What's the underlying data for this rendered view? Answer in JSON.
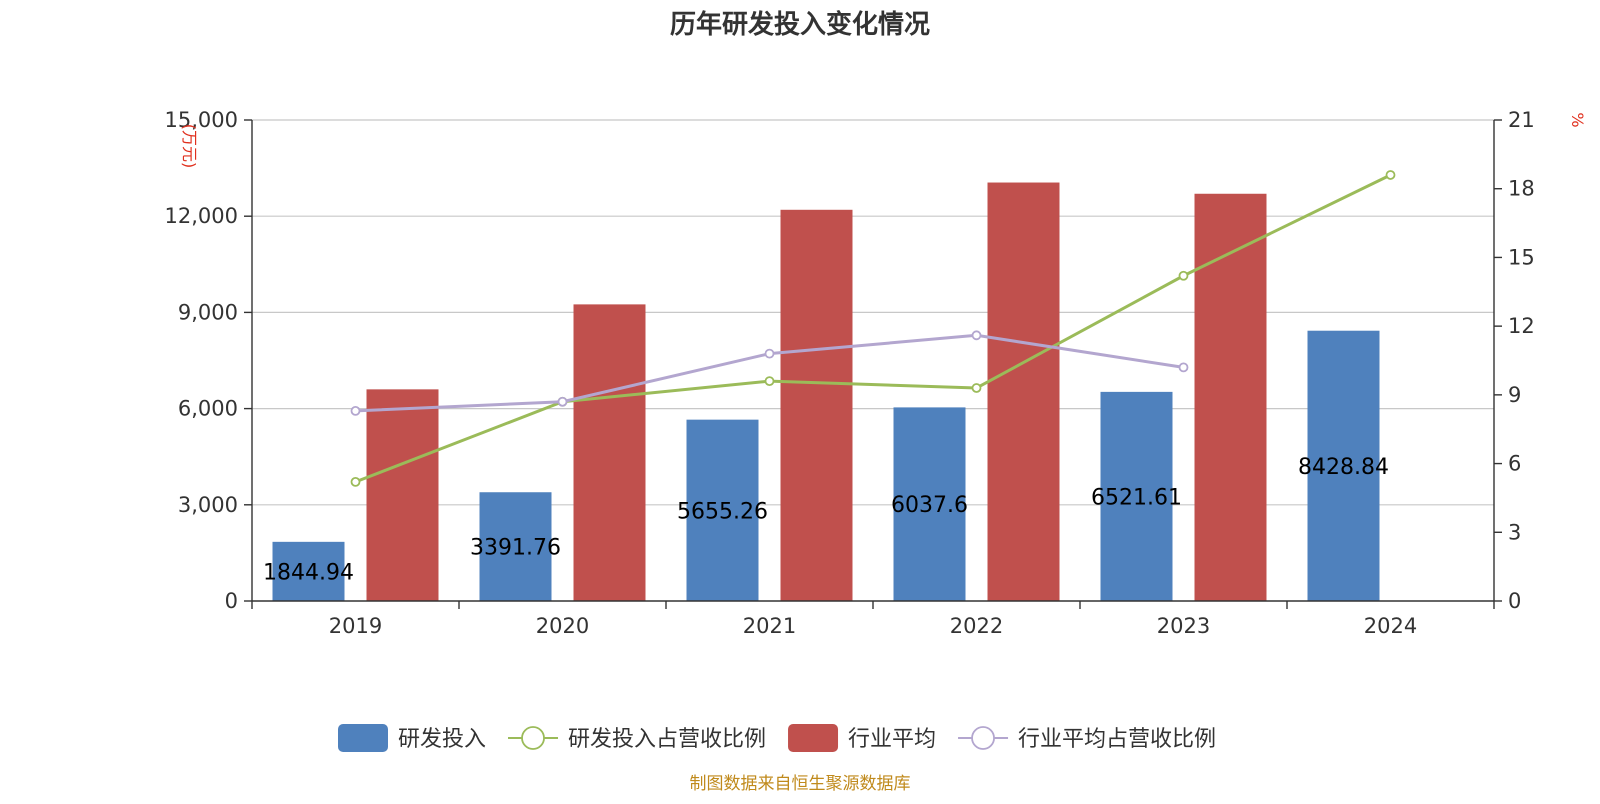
{
  "chart_data": {
    "type": "bar",
    "title": "历年研发投入变化情况",
    "categories": [
      "2019",
      "2020",
      "2021",
      "2022",
      "2023",
      "2024"
    ],
    "left_axis": {
      "unit_label": "(万元)",
      "ylim": [
        0,
        15000
      ],
      "ticks": [
        0,
        3000,
        6000,
        9000,
        12000,
        15000
      ],
      "tick_labels": [
        "0",
        "3,000",
        "6,000",
        "9,000",
        "12,000",
        "15,000"
      ]
    },
    "right_axis": {
      "unit_label": "%",
      "ylim": [
        0,
        21
      ],
      "ticks": [
        0,
        3,
        6,
        9,
        12,
        15,
        18,
        21
      ],
      "tick_labels": [
        "0",
        "3",
        "6",
        "9",
        "12",
        "15",
        "18",
        "21"
      ]
    },
    "grid": true,
    "legend_position": "bottom",
    "series": [
      {
        "name": "研发投入",
        "type": "bar",
        "axis": "left",
        "color": "#4f81bd",
        "values": [
          1844.94,
          3391.76,
          5655.26,
          6037.6,
          6521.61,
          8428.84
        ],
        "labels": [
          "1844.94",
          "3391.76",
          "5655.26",
          "6037.6",
          "6521.61",
          "8428.84"
        ]
      },
      {
        "name": "研发投入占营收比例",
        "type": "line",
        "axis": "right",
        "color": "#9bbb59",
        "values": [
          5.2,
          8.7,
          9.6,
          9.3,
          14.2,
          18.6
        ]
      },
      {
        "name": "行业平均",
        "type": "bar",
        "axis": "left",
        "color": "#c0504d",
        "values": [
          6600,
          9250,
          12200,
          13050,
          12700,
          null
        ]
      },
      {
        "name": "行业平均占营收比例",
        "type": "line",
        "axis": "right",
        "color": "#b3a6cf",
        "values": [
          8.3,
          8.7,
          10.8,
          11.6,
          10.2,
          null
        ]
      }
    ]
  },
  "source_note": "制图数据来自恒生聚源数据库"
}
